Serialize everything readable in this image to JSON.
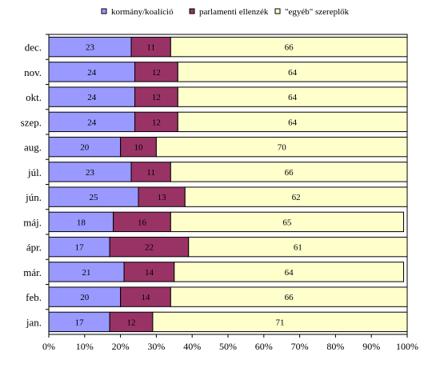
{
  "chart_data": {
    "type": "bar",
    "orientation": "horizontal",
    "stacked": "percent",
    "categories": [
      "dec.",
      "nov.",
      "okt.",
      "szep.",
      "aug.",
      "júl.",
      "jún.",
      "máj.",
      "ápr.",
      "már.",
      "feb.",
      "jan."
    ],
    "series": [
      {
        "name": "kormány/koalíció",
        "color": "#9999ff",
        "values": [
          23,
          24,
          24,
          24,
          20,
          23,
          25,
          18,
          17,
          21,
          20,
          17
        ]
      },
      {
        "name": "parlamenti ellenzék",
        "color": "#993366",
        "values": [
          11,
          12,
          12,
          12,
          10,
          11,
          13,
          16,
          22,
          14,
          14,
          12
        ]
      },
      {
        "name": "\"egyéb\" szereplők",
        "color": "#ffffcc",
        "values": [
          66,
          64,
          64,
          64,
          70,
          66,
          62,
          65,
          61,
          64,
          66,
          71
        ]
      }
    ],
    "xlim": [
      0,
      100
    ],
    "xticks": [
      "0%",
      "10%",
      "20%",
      "30%",
      "40%",
      "50%",
      "60%",
      "70%",
      "80%",
      "90%",
      "100%"
    ],
    "legend_position": "top",
    "grid": false
  }
}
